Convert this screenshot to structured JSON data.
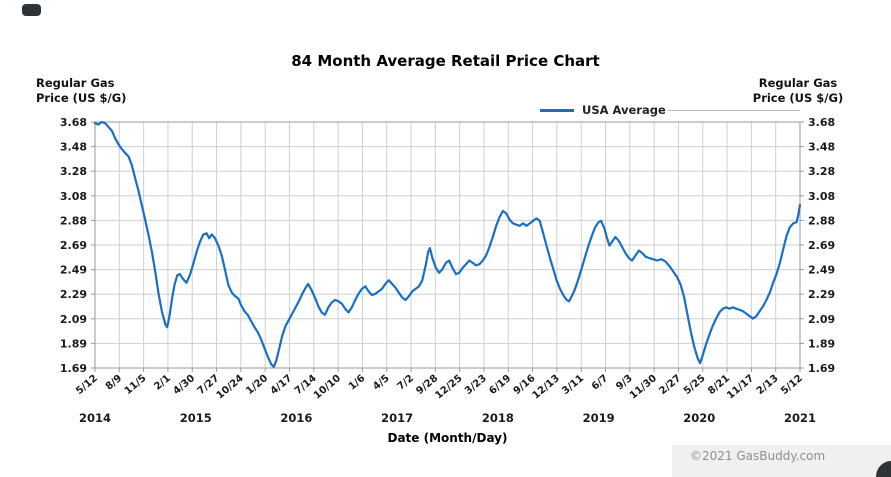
{
  "page": {
    "background": "#ffffff"
  },
  "footer": {
    "copyright": "©2021 GasBuddy.com"
  },
  "chart_data": {
    "type": "line",
    "title": "84 Month Average Retail Price Chart",
    "xlabel": "Date (Month/Day)",
    "ylabel_left": "Regular Gas\nPrice (US $/G)",
    "ylabel_right": "Regular Gas\nPrice (US $/G)",
    "legend_label": "USA Average",
    "legend_position": "top-center",
    "grid": true,
    "ylim": [
      1.69,
      3.68
    ],
    "y_ticks": [
      "3.68",
      "3.48",
      "3.28",
      "3.08",
      "2.88",
      "2.69",
      "2.49",
      "2.29",
      "2.09",
      "1.89",
      "1.69"
    ],
    "x_ticks": [
      "5/12",
      "8/9",
      "11/5",
      "2/1",
      "4/30",
      "7/27",
      "10/24",
      "1/20",
      "4/17",
      "7/14",
      "10/10",
      "1/6",
      "4/5",
      "7/2",
      "9/28",
      "12/25",
      "3/23",
      "6/19",
      "9/16",
      "12/13",
      "3/11",
      "6/7",
      "9/3",
      "11/30",
      "2/27",
      "5/25",
      "8/21",
      "11/17",
      "2/13",
      "5/12"
    ],
    "year_labels": [
      "2014",
      "2015",
      "2016",
      "2017",
      "2018",
      "2019",
      "2020",
      "2021"
    ],
    "x_range": [
      0,
      84
    ],
    "x_unit": "months since 2014-05-12",
    "colors": {
      "line": "#1a6fc3",
      "grid": "#cfcfcf",
      "axis": "#999999",
      "text": "#1a1a1a"
    },
    "series": [
      {
        "name": "USA Average",
        "points": [
          [
            0,
            3.67
          ],
          [
            0.4,
            3.66
          ],
          [
            0.8,
            3.68
          ],
          [
            1.2,
            3.67
          ],
          [
            1.6,
            3.64
          ],
          [
            2,
            3.61
          ],
          [
            2.4,
            3.55
          ],
          [
            2.8,
            3.5
          ],
          [
            3.2,
            3.46
          ],
          [
            3.6,
            3.43
          ],
          [
            4,
            3.4
          ],
          [
            4.4,
            3.33
          ],
          [
            4.8,
            3.22
          ],
          [
            5.2,
            3.12
          ],
          [
            5.6,
            3.0
          ],
          [
            6,
            2.88
          ],
          [
            6.4,
            2.76
          ],
          [
            6.8,
            2.62
          ],
          [
            7.2,
            2.46
          ],
          [
            7.6,
            2.28
          ],
          [
            8,
            2.14
          ],
          [
            8.4,
            2.04
          ],
          [
            8.6,
            2.02
          ],
          [
            8.9,
            2.12
          ],
          [
            9.2,
            2.26
          ],
          [
            9.5,
            2.37
          ],
          [
            9.8,
            2.44
          ],
          [
            10.1,
            2.45
          ],
          [
            10.5,
            2.41
          ],
          [
            10.9,
            2.38
          ],
          [
            11.3,
            2.44
          ],
          [
            11.7,
            2.53
          ],
          [
            12.1,
            2.63
          ],
          [
            12.5,
            2.71
          ],
          [
            12.9,
            2.77
          ],
          [
            13.3,
            2.78
          ],
          [
            13.6,
            2.74
          ],
          [
            13.9,
            2.77
          ],
          [
            14.3,
            2.74
          ],
          [
            14.7,
            2.68
          ],
          [
            15.1,
            2.6
          ],
          [
            15.5,
            2.48
          ],
          [
            15.9,
            2.36
          ],
          [
            16.3,
            2.3
          ],
          [
            16.7,
            2.27
          ],
          [
            17.1,
            2.25
          ],
          [
            17.4,
            2.2
          ],
          [
            17.8,
            2.15
          ],
          [
            18.2,
            2.12
          ],
          [
            18.6,
            2.07
          ],
          [
            19,
            2.02
          ],
          [
            19.4,
            1.98
          ],
          [
            19.8,
            1.92
          ],
          [
            20.2,
            1.85
          ],
          [
            20.6,
            1.78
          ],
          [
            21,
            1.72
          ],
          [
            21.3,
            1.7
          ],
          [
            21.6,
            1.75
          ],
          [
            22,
            1.86
          ],
          [
            22.3,
            1.95
          ],
          [
            22.7,
            2.03
          ],
          [
            23.1,
            2.08
          ],
          [
            23.5,
            2.13
          ],
          [
            23.9,
            2.18
          ],
          [
            24.3,
            2.23
          ],
          [
            24.7,
            2.29
          ],
          [
            25.1,
            2.34
          ],
          [
            25.4,
            2.37
          ],
          [
            25.8,
            2.32
          ],
          [
            26.2,
            2.26
          ],
          [
            26.6,
            2.19
          ],
          [
            27,
            2.14
          ],
          [
            27.4,
            2.12
          ],
          [
            27.8,
            2.18
          ],
          [
            28.2,
            2.22
          ],
          [
            28.6,
            2.24
          ],
          [
            29,
            2.23
          ],
          [
            29.4,
            2.21
          ],
          [
            29.8,
            2.17
          ],
          [
            30.2,
            2.14
          ],
          [
            30.6,
            2.18
          ],
          [
            31,
            2.24
          ],
          [
            31.4,
            2.29
          ],
          [
            31.8,
            2.33
          ],
          [
            32.2,
            2.35
          ],
          [
            32.6,
            2.31
          ],
          [
            33,
            2.28
          ],
          [
            33.4,
            2.29
          ],
          [
            33.8,
            2.31
          ],
          [
            34.2,
            2.33
          ],
          [
            34.6,
            2.37
          ],
          [
            35,
            2.4
          ],
          [
            35.4,
            2.37
          ],
          [
            35.8,
            2.34
          ],
          [
            36.2,
            2.3
          ],
          [
            36.6,
            2.26
          ],
          [
            37,
            2.24
          ],
          [
            37.4,
            2.27
          ],
          [
            37.8,
            2.31
          ],
          [
            38.2,
            2.33
          ],
          [
            38.6,
            2.35
          ],
          [
            39,
            2.4
          ],
          [
            39.4,
            2.52
          ],
          [
            39.7,
            2.63
          ],
          [
            39.9,
            2.66
          ],
          [
            40.2,
            2.58
          ],
          [
            40.6,
            2.5
          ],
          [
            41,
            2.46
          ],
          [
            41.4,
            2.49
          ],
          [
            41.8,
            2.54
          ],
          [
            42.2,
            2.56
          ],
          [
            42.6,
            2.5
          ],
          [
            43,
            2.45
          ],
          [
            43.4,
            2.46
          ],
          [
            43.8,
            2.5
          ],
          [
            44.2,
            2.53
          ],
          [
            44.6,
            2.56
          ],
          [
            45,
            2.54
          ],
          [
            45.4,
            2.52
          ],
          [
            45.8,
            2.53
          ],
          [
            46.2,
            2.56
          ],
          [
            46.6,
            2.6
          ],
          [
            47,
            2.67
          ],
          [
            47.4,
            2.75
          ],
          [
            47.8,
            2.84
          ],
          [
            48.2,
            2.91
          ],
          [
            48.6,
            2.96
          ],
          [
            49,
            2.94
          ],
          [
            49.4,
            2.89
          ],
          [
            49.8,
            2.86
          ],
          [
            50.2,
            2.85
          ],
          [
            50.6,
            2.84
          ],
          [
            51,
            2.86
          ],
          [
            51.4,
            2.84
          ],
          [
            51.8,
            2.86
          ],
          [
            52.2,
            2.88
          ],
          [
            52.6,
            2.9
          ],
          [
            53,
            2.88
          ],
          [
            53.4,
            2.78
          ],
          [
            53.8,
            2.68
          ],
          [
            54.2,
            2.58
          ],
          [
            54.6,
            2.49
          ],
          [
            55,
            2.4
          ],
          [
            55.4,
            2.33
          ],
          [
            55.8,
            2.28
          ],
          [
            56.2,
            2.24
          ],
          [
            56.5,
            2.23
          ],
          [
            56.8,
            2.27
          ],
          [
            57.2,
            2.33
          ],
          [
            57.6,
            2.41
          ],
          [
            58,
            2.5
          ],
          [
            58.4,
            2.59
          ],
          [
            58.8,
            2.68
          ],
          [
            59.2,
            2.76
          ],
          [
            59.6,
            2.83
          ],
          [
            60,
            2.87
          ],
          [
            60.3,
            2.88
          ],
          [
            60.7,
            2.82
          ],
          [
            61,
            2.74
          ],
          [
            61.3,
            2.68
          ],
          [
            61.6,
            2.71
          ],
          [
            62,
            2.75
          ],
          [
            62.4,
            2.72
          ],
          [
            62.8,
            2.67
          ],
          [
            63.2,
            2.62
          ],
          [
            63.6,
            2.58
          ],
          [
            64,
            2.56
          ],
          [
            64.4,
            2.6
          ],
          [
            64.8,
            2.64
          ],
          [
            65.2,
            2.62
          ],
          [
            65.6,
            2.59
          ],
          [
            66,
            2.58
          ],
          [
            66.5,
            2.57
          ],
          [
            67,
            2.56
          ],
          [
            67.5,
            2.57
          ],
          [
            68,
            2.55
          ],
          [
            68.5,
            2.51
          ],
          [
            69,
            2.46
          ],
          [
            69.4,
            2.42
          ],
          [
            69.8,
            2.36
          ],
          [
            70.2,
            2.26
          ],
          [
            70.6,
            2.12
          ],
          [
            71,
            1.98
          ],
          [
            71.4,
            1.86
          ],
          [
            71.8,
            1.77
          ],
          [
            72.1,
            1.73
          ],
          [
            72.4,
            1.79
          ],
          [
            72.8,
            1.88
          ],
          [
            73.2,
            1.96
          ],
          [
            73.6,
            2.03
          ],
          [
            74,
            2.09
          ],
          [
            74.4,
            2.14
          ],
          [
            74.8,
            2.17
          ],
          [
            75.2,
            2.18
          ],
          [
            75.6,
            2.17
          ],
          [
            76,
            2.18
          ],
          [
            76.4,
            2.17
          ],
          [
            76.8,
            2.16
          ],
          [
            77.2,
            2.15
          ],
          [
            77.6,
            2.13
          ],
          [
            78,
            2.11
          ],
          [
            78.4,
            2.09
          ],
          [
            78.8,
            2.11
          ],
          [
            79.2,
            2.15
          ],
          [
            79.6,
            2.19
          ],
          [
            80,
            2.24
          ],
          [
            80.4,
            2.3
          ],
          [
            80.8,
            2.38
          ],
          [
            81.2,
            2.45
          ],
          [
            81.6,
            2.54
          ],
          [
            82,
            2.65
          ],
          [
            82.4,
            2.76
          ],
          [
            82.8,
            2.83
          ],
          [
            83.2,
            2.86
          ],
          [
            83.6,
            2.87
          ],
          [
            83.8,
            2.93
          ],
          [
            84,
            3.01
          ]
        ]
      }
    ]
  }
}
